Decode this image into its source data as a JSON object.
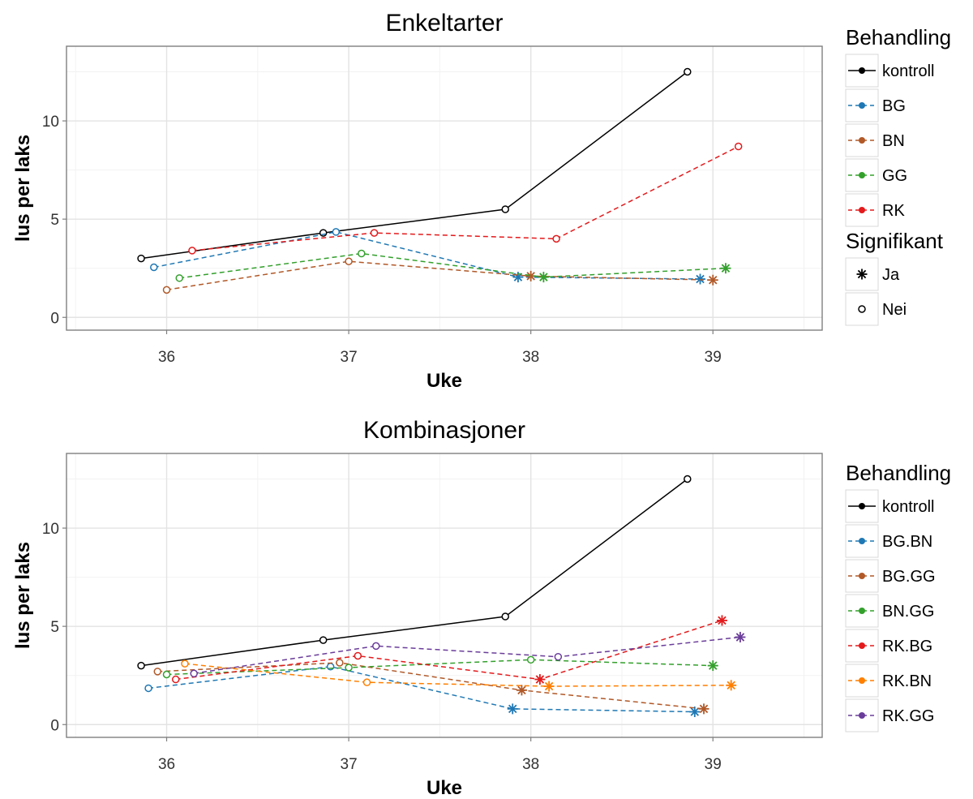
{
  "chart_data": [
    {
      "type": "line",
      "title": "Enkeltarter",
      "xlabel": "Uke",
      "ylabel": "lus per laks",
      "xlim": [
        35.45,
        39.6
      ],
      "ylim": [
        -0.65,
        13.8
      ],
      "xticks": [
        36,
        37,
        38,
        39
      ],
      "xtick_labels": [
        "36",
        "37",
        "38",
        "39"
      ],
      "yticks": [
        0,
        5,
        10
      ],
      "ytick_labels": [
        "0",
        "5",
        "10"
      ],
      "grid": true,
      "legend_position": "right",
      "legend_color_title": "Behandling",
      "legend_shape_title": "Signifikant",
      "shape_entries": [
        {
          "label": "Ja",
          "shape": "asterisk"
        },
        {
          "label": "Nei",
          "shape": "circle"
        }
      ],
      "series": [
        {
          "name": "kontroll",
          "color": "#000000",
          "dashed": false,
          "x": [
            35.86,
            36.86,
            37.86,
            38.86
          ],
          "y": [
            3.0,
            4.3,
            5.5,
            12.5
          ],
          "significant": [
            false,
            false,
            false,
            false
          ]
        },
        {
          "name": "BG",
          "color": "#1f78b4",
          "dashed": true,
          "x": [
            35.93,
            36.93,
            37.93,
            38.93
          ],
          "y": [
            2.55,
            4.35,
            2.05,
            1.95
          ],
          "significant": [
            false,
            false,
            true,
            true
          ]
        },
        {
          "name": "BN",
          "color": "#b15928",
          "dashed": true,
          "x": [
            36.0,
            37.0,
            38.0,
            39.0
          ],
          "y": [
            1.4,
            2.85,
            2.1,
            1.9
          ],
          "significant": [
            false,
            false,
            true,
            true
          ]
        },
        {
          "name": "GG",
          "color": "#33a02c",
          "dashed": true,
          "x": [
            36.07,
            37.07,
            38.07,
            39.07
          ],
          "y": [
            2.0,
            3.25,
            2.05,
            2.5
          ],
          "significant": [
            false,
            false,
            true,
            true
          ]
        },
        {
          "name": "RK",
          "color": "#e31a1c",
          "dashed": true,
          "x": [
            36.14,
            37.14,
            38.14,
            39.14
          ],
          "y": [
            3.4,
            4.3,
            4.0,
            8.7
          ],
          "significant": [
            false,
            false,
            false,
            false
          ]
        }
      ]
    },
    {
      "type": "line",
      "title": "Kombinasjoner",
      "xlabel": "Uke",
      "ylabel": "lus per laks",
      "xlim": [
        35.45,
        39.6
      ],
      "ylim": [
        -0.65,
        13.8
      ],
      "xticks": [
        36,
        37,
        38,
        39
      ],
      "xtick_labels": [
        "36",
        "37",
        "38",
        "39"
      ],
      "yticks": [
        0,
        5,
        10
      ],
      "ytick_labels": [
        "0",
        "5",
        "10"
      ],
      "grid": true,
      "legend_position": "right",
      "legend_color_title": "Behandling",
      "series": [
        {
          "name": "kontroll",
          "color": "#000000",
          "dashed": false,
          "x": [
            35.86,
            36.86,
            37.86,
            38.86
          ],
          "y": [
            3.0,
            4.3,
            5.5,
            12.5
          ],
          "significant": [
            false,
            false,
            false,
            false
          ]
        },
        {
          "name": "BG.BN",
          "color": "#1f78b4",
          "dashed": true,
          "x": [
            35.9,
            36.9,
            37.9,
            38.9
          ],
          "y": [
            1.85,
            2.95,
            0.8,
            0.65
          ],
          "significant": [
            false,
            false,
            true,
            true
          ]
        },
        {
          "name": "BG.GG",
          "color": "#b15928",
          "dashed": true,
          "x": [
            35.95,
            36.95,
            37.95,
            38.95
          ],
          "y": [
            2.7,
            3.15,
            1.75,
            0.8
          ],
          "significant": [
            false,
            false,
            true,
            true
          ]
        },
        {
          "name": "BN.GG",
          "color": "#33a02c",
          "dashed": true,
          "x": [
            36.0,
            37.0,
            38.0,
            39.0
          ],
          "y": [
            2.55,
            2.9,
            3.3,
            3.0
          ],
          "significant": [
            false,
            false,
            false,
            true
          ]
        },
        {
          "name": "RK.BG",
          "color": "#e31a1c",
          "dashed": true,
          "x": [
            36.05,
            37.05,
            38.05,
            39.05
          ],
          "y": [
            2.3,
            3.5,
            2.3,
            5.3
          ],
          "significant": [
            false,
            false,
            true,
            true
          ]
        },
        {
          "name": "RK.BN",
          "color": "#ff7f00",
          "dashed": true,
          "x": [
            36.1,
            37.1,
            38.1,
            39.1
          ],
          "y": [
            3.1,
            2.15,
            1.95,
            2.0
          ],
          "significant": [
            false,
            false,
            true,
            true
          ]
        },
        {
          "name": "RK.GG",
          "color": "#6a3d9a",
          "dashed": true,
          "x": [
            36.15,
            37.15,
            38.15,
            39.15
          ],
          "y": [
            2.6,
            4.0,
            3.45,
            4.45
          ],
          "significant": [
            false,
            false,
            false,
            true
          ]
        }
      ]
    }
  ]
}
